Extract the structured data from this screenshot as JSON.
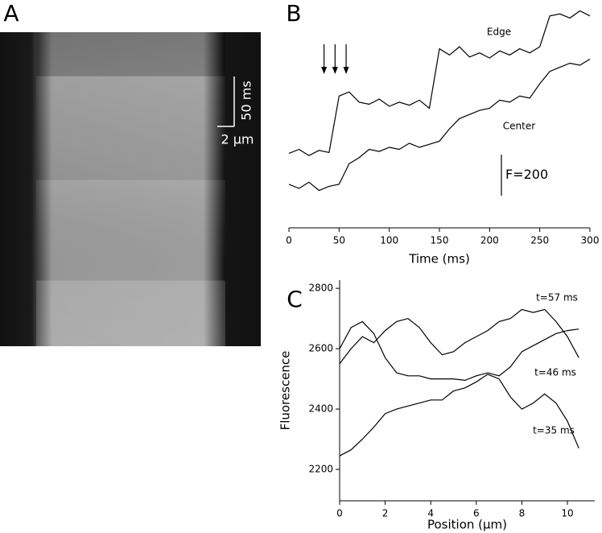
{
  "chart_data": [
    {
      "type": "image",
      "panel_label": "A",
      "time_scale_label": "50 ms",
      "space_scale_label": "2 μm"
    },
    {
      "type": "line",
      "panel_label": "B",
      "xlabel": "Time (ms)",
      "x": [
        0,
        10,
        20,
        30,
        40,
        50,
        60,
        70,
        80,
        90,
        100,
        110,
        120,
        130,
        140,
        150,
        160,
        170,
        180,
        190,
        200,
        210,
        220,
        230,
        240,
        250,
        260,
        270,
        280,
        290,
        300
      ],
      "xlim": [
        0,
        300
      ],
      "xticks": [
        0,
        50,
        100,
        150,
        200,
        250,
        300
      ],
      "ylim": [
        0,
        1020
      ],
      "series": [
        {
          "name": "Edge",
          "color": "#000000",
          "values": [
            280,
            300,
            270,
            295,
            285,
            560,
            580,
            530,
            520,
            545,
            510,
            530,
            515,
            540,
            500,
            790,
            760,
            800,
            750,
            770,
            745,
            780,
            760,
            790,
            770,
            800,
            950,
            960,
            940,
            975,
            950
          ]
        },
        {
          "name": "Center",
          "color": "#000000",
          "values": [
            130,
            110,
            140,
            100,
            120,
            130,
            230,
            260,
            300,
            290,
            310,
            300,
            330,
            310,
            325,
            340,
            400,
            450,
            470,
            490,
            500,
            540,
            530,
            560,
            550,
            620,
            680,
            700,
            720,
            710,
            740
          ]
        }
      ],
      "arrows": [
        35,
        46,
        57
      ],
      "scale_bar": {
        "value": 200,
        "label": "F=200"
      }
    },
    {
      "type": "line",
      "panel_label": "C",
      "xlabel": "Position (μm)",
      "ylabel": "Fluorescence",
      "x": [
        0,
        0.5,
        1,
        1.5,
        2,
        2.5,
        3,
        3.5,
        4,
        4.5,
        5,
        5.5,
        6,
        6.5,
        7,
        7.5,
        8,
        8.5,
        9,
        9.5,
        10,
        10.5
      ],
      "xlim": [
        0,
        11.2
      ],
      "xticks": [
        0,
        2,
        4,
        6,
        8,
        10
      ],
      "ylim": [
        2096,
        2827
      ],
      "yticks": [
        2200,
        2400,
        2600,
        2800
      ],
      "series": [
        {
          "name": "t=57 ms",
          "color": "#000000",
          "values": [
            2550,
            2600,
            2640,
            2620,
            2660,
            2690,
            2700,
            2670,
            2620,
            2580,
            2590,
            2620,
            2640,
            2660,
            2690,
            2700,
            2730,
            2720,
            2730,
            2690,
            2640,
            2570
          ]
        },
        {
          "name": "t=46 ms",
          "color": "#000000",
          "values": [
            2600,
            2670,
            2690,
            2650,
            2570,
            2520,
            2510,
            2510,
            2500,
            2500,
            2500,
            2495,
            2510,
            2520,
            2510,
            2540,
            2590,
            2610,
            2630,
            2650,
            2660,
            2665
          ]
        },
        {
          "name": "t=35 ms",
          "color": "#000000",
          "values": [
            2245,
            2265,
            2300,
            2340,
            2385,
            2400,
            2410,
            2420,
            2430,
            2430,
            2460,
            2470,
            2490,
            2515,
            2500,
            2440,
            2400,
            2420,
            2450,
            2420,
            2360,
            2270
          ]
        }
      ]
    }
  ]
}
